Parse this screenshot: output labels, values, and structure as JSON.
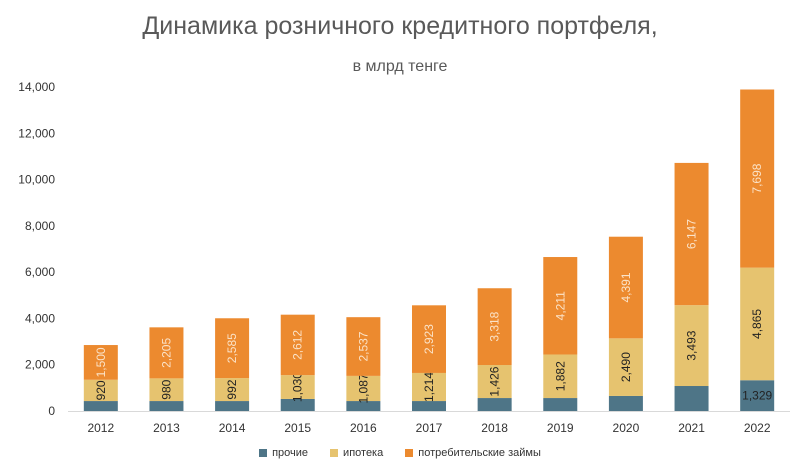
{
  "chart_data": {
    "type": "bar",
    "stacked": true,
    "title": "Динамика розничного кредитного портфеля,",
    "subtitle": "в млрд тенге",
    "xlabel": "",
    "ylabel": "",
    "ylim": [
      0,
      14000
    ],
    "yticks": [
      "0",
      "2,000",
      "4,000",
      "6,000",
      "8,000",
      "10,000",
      "12,000",
      "14,000"
    ],
    "ytick_values": [
      0,
      2000,
      4000,
      6000,
      8000,
      10000,
      12000,
      14000
    ],
    "categories": [
      "2012",
      "2013",
      "2014",
      "2015",
      "2016",
      "2017",
      "2018",
      "2019",
      "2020",
      "2021",
      "2022"
    ],
    "series": [
      {
        "name": "прочие",
        "color": "#4e7587",
        "values": [
          430,
          430,
          430,
          520,
          430,
          430,
          560,
          560,
          650,
          1080,
          1329
        ],
        "labels": [
          "",
          "",
          "",
          "",
          "",
          "",
          "",
          "",
          "",
          "",
          "1,329"
        ]
      },
      {
        "name": "ипотека",
        "color": "#e6c36f",
        "values": [
          920,
          980,
          992,
          1030,
          1087,
          1214,
          1426,
          1882,
          2490,
          3493,
          4865
        ],
        "labels": [
          "920",
          "980",
          "992",
          "1,030",
          "1,087",
          "1,214",
          "1,426",
          "1,882",
          "2,490",
          "3,493",
          "4,865"
        ]
      },
      {
        "name": "потребительские займы",
        "color": "#ec8a2f",
        "values": [
          1500,
          2205,
          2585,
          2612,
          2537,
          2923,
          3318,
          4211,
          4391,
          6147,
          7698
        ],
        "labels": [
          "1,500",
          "2,205",
          "2,585",
          "2,612",
          "2,537",
          "2,923",
          "3,318",
          "4,211",
          "4,391",
          "6,147",
          "7,698"
        ]
      }
    ],
    "grid": false,
    "legend": "bottom"
  }
}
